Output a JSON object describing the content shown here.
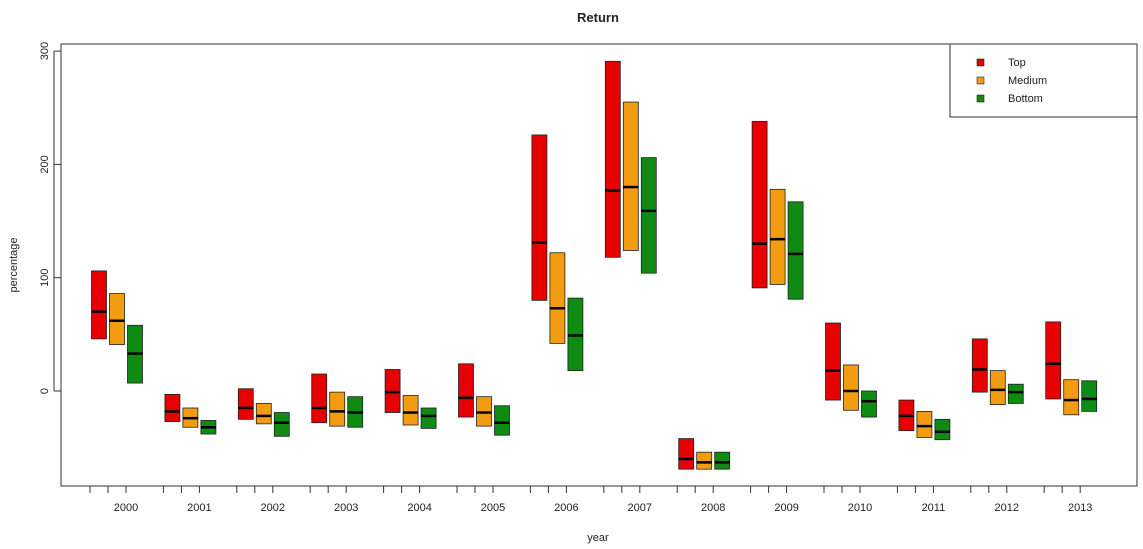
{
  "chart_data": {
    "type": "bar",
    "subtype": "floating-range-with-median",
    "title": "Return",
    "xlabel": "year",
    "ylabel": "percentage",
    "ylim": [
      -85,
      305
    ],
    "yticks": [
      0,
      100,
      200,
      300
    ],
    "grid": false,
    "legend_position": "top-right",
    "categories": [
      "2000",
      "2001",
      "2002",
      "2003",
      "2004",
      "2005",
      "2006",
      "2007",
      "2008",
      "2009",
      "2010",
      "2011",
      "2012",
      "2013"
    ],
    "series": [
      {
        "name": "Top",
        "color": "#e60000",
        "low": [
          46,
          -27,
          -25,
          -28,
          -19,
          -23,
          80,
          118,
          -69,
          91,
          -8,
          -35,
          -1,
          -7
        ],
        "median": [
          70,
          -18,
          -15,
          -15,
          -1,
          -6,
          131,
          177,
          -60,
          130,
          18,
          -22,
          19,
          24
        ],
        "high": [
          106,
          -3,
          2,
          15,
          19,
          24,
          226,
          291,
          -42,
          238,
          60,
          -8,
          46,
          61
        ]
      },
      {
        "name": "Medium",
        "color": "#f29c12",
        "low": [
          41,
          -32,
          -29,
          -31,
          -30,
          -31,
          42,
          124,
          -69,
          94,
          -17,
          -41,
          -12,
          -21
        ],
        "median": [
          62,
          -24,
          -22,
          -18,
          -19,
          -19,
          73,
          180,
          -63,
          134,
          0,
          -31,
          1,
          -8
        ],
        "high": [
          86,
          -15,
          -11,
          -1,
          -4,
          -5,
          122,
          255,
          -54,
          178,
          23,
          -18,
          18,
          10
        ]
      },
      {
        "name": "Bottom",
        "color": "#0f8a13",
        "low": [
          7,
          -38,
          -40,
          -32,
          -33,
          -39,
          18,
          104,
          -69,
          81,
          -23,
          -43,
          -11,
          -18
        ],
        "median": [
          33,
          -32,
          -28,
          -19,
          -22,
          -28,
          49,
          159,
          -63,
          121,
          -9,
          -36,
          -1,
          -7
        ],
        "high": [
          58,
          -26,
          -19,
          -5,
          -15,
          -13,
          82,
          206,
          -54,
          167,
          0,
          -25,
          6,
          9
        ]
      }
    ]
  }
}
